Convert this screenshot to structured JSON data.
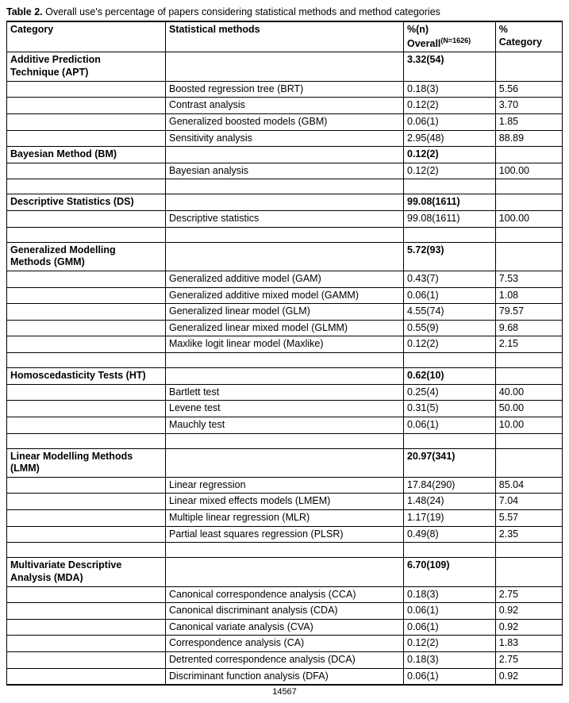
{
  "caption_lead": "Table 2.",
  "caption_rest": " Overall use's percentage of papers considering statistical methods and method categories",
  "head": {
    "category": "Category",
    "methods": "Statistical methods",
    "overall_l1": "%(n)",
    "overall_l2a": "Overall",
    "overall_l2b": "(N=1626)",
    "pctcat_l1": "%",
    "pctcat_l2": "Category"
  },
  "footer_num": "14567",
  "groups": [
    {
      "cat_lines": [
        "Additive Prediction",
        "Technique (APT)"
      ],
      "overall": "3.32(54)",
      "rows": [
        {
          "m": "Boosted regression tree (BRT)",
          "o": "0.18(3)",
          "p": "5.56"
        },
        {
          "m": "Contrast analysis",
          "o": "0.12(2)",
          "p": "3.70"
        },
        {
          "m": "Generalized boosted models (GBM)",
          "o": "0.06(1)",
          "p": "1.85"
        },
        {
          "m": "Sensitivity analysis",
          "o": "2.95(48)",
          "p": "88.89"
        }
      ],
      "trailing_spacer": false
    },
    {
      "cat_lines": [
        "Bayesian Method (BM)"
      ],
      "overall": "0.12(2)",
      "rows": [
        {
          "m": "Bayesian analysis",
          "o": "0.12(2)",
          "p": "100.00"
        }
      ],
      "trailing_spacer": true
    },
    {
      "cat_lines": [
        "Descriptive Statistics (DS)"
      ],
      "overall": "99.08(1611)",
      "rows": [
        {
          "m": "Descriptive statistics",
          "o": "99.08(1611)",
          "p": "100.00"
        }
      ],
      "trailing_spacer": true
    },
    {
      "cat_lines": [
        "Generalized Modelling",
        "Methods (GMM)"
      ],
      "overall": "5.72(93)",
      "rows": [
        {
          "m": "Generalized additive model (GAM)",
          "o": "0.43(7)",
          "p": "7.53"
        },
        {
          "m": "Generalized additive mixed model (GAMM)",
          "o": "0.06(1)",
          "p": "1.08"
        },
        {
          "m": "Generalized linear model (GLM)",
          "o": "4.55(74)",
          "p": "79.57"
        },
        {
          "m": "Generalized linear mixed model (GLMM)",
          "o": "0.55(9)",
          "p": "9.68"
        },
        {
          "m": "Maxlike logit linear model (Maxlike)",
          "o": "0.12(2)",
          "p": "2.15"
        }
      ],
      "trailing_spacer": true
    },
    {
      "cat_lines": [
        "Homoscedasticity Tests (HT)"
      ],
      "overall": "0.62(10)",
      "rows": [
        {
          "m": "Bartlett test",
          "o": "0.25(4)",
          "p": "40.00"
        },
        {
          "m": "Levene test",
          "o": "0.31(5)",
          "p": "50.00"
        },
        {
          "m": "Mauchly test",
          "o": "0.06(1)",
          "p": "10.00"
        }
      ],
      "trailing_spacer": true
    },
    {
      "cat_lines": [
        "Linear Modelling Methods",
        "(LMM)"
      ],
      "overall": "20.97(341)",
      "rows": [
        {
          "m": "Linear regression",
          "o": "17.84(290)",
          "p": "85.04"
        },
        {
          "m": "Linear mixed effects models (LMEM)",
          "o": "1.48(24)",
          "p": "7.04"
        },
        {
          "m": "Multiple linear regression (MLR)",
          "o": "1.17(19)",
          "p": "5.57"
        },
        {
          "m": "Partial least squares regression (PLSR)",
          "o": "0.49(8)",
          "p": "2.35"
        }
      ],
      "trailing_spacer": true
    },
    {
      "cat_lines": [
        "Multivariate Descriptive",
        "Analysis (MDA)"
      ],
      "overall": "6.70(109)",
      "rows": [
        {
          "m": "Canonical correspondence analysis (CCA)",
          "o": "0.18(3)",
          "p": "2.75"
        },
        {
          "m": "Canonical discriminant analysis (CDA)",
          "o": "0.06(1)",
          "p": "0.92"
        },
        {
          "m": "Canonical variate analysis (CVA)",
          "o": "0.06(1)",
          "p": "0.92"
        },
        {
          "m": "Correspondence analysis (CA)",
          "o": "0.12(2)",
          "p": "1.83"
        },
        {
          "m": "Detrented correspondence analysis (DCA)",
          "o": "0.18(3)",
          "p": "2.75"
        },
        {
          "m": "Discriminant function analysis (DFA)",
          "o": "0.06(1)",
          "p": "0.92"
        }
      ],
      "trailing_spacer": false
    }
  ]
}
